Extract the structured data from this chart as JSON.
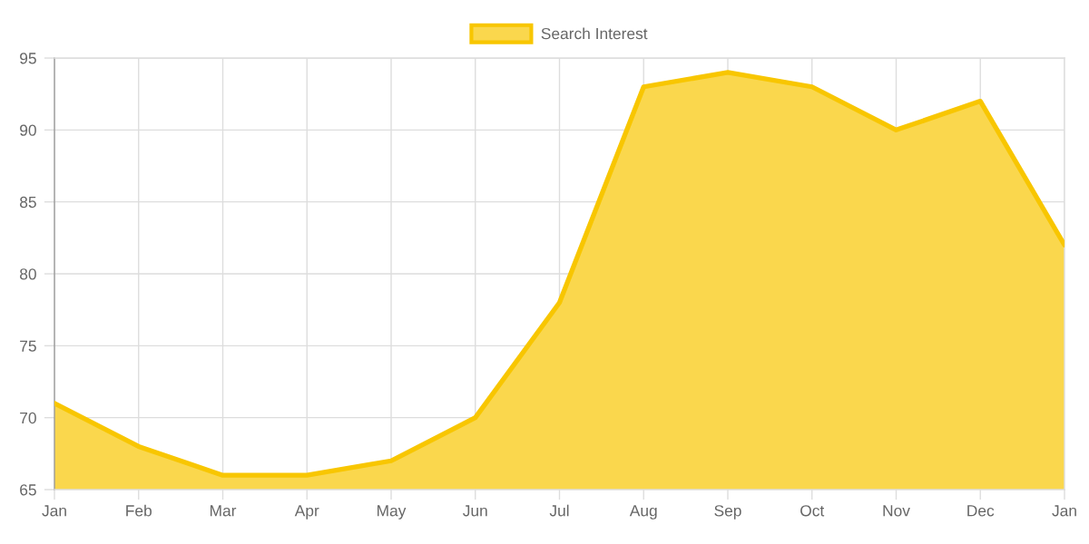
{
  "chart_data": {
    "type": "area",
    "categories": [
      "Jan",
      "Feb",
      "Mar",
      "Apr",
      "May",
      "Jun",
      "Jul",
      "Aug",
      "Sep",
      "Oct",
      "Nov",
      "Dec",
      "Jan"
    ],
    "series": [
      {
        "name": "Search Interest",
        "color": "#f8c600",
        "values": [
          71,
          68,
          66,
          66,
          67,
          70,
          78,
          93,
          94,
          93,
          90,
          92,
          82
        ]
      }
    ],
    "ylim": [
      65,
      95
    ],
    "yticks": [
      65,
      70,
      75,
      80,
      85,
      90,
      95
    ],
    "grid": true,
    "legend": "top"
  }
}
